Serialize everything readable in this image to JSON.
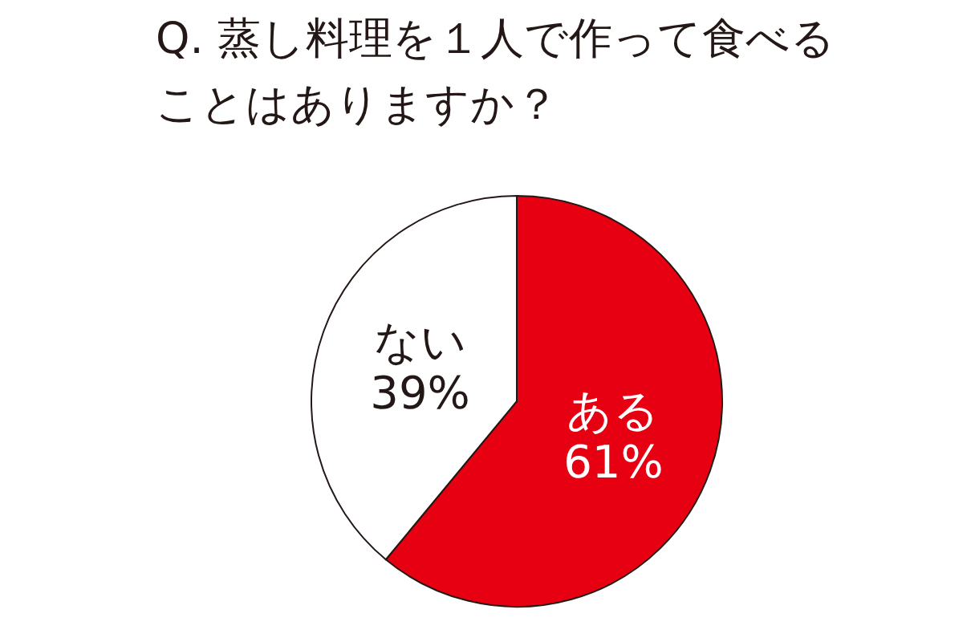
{
  "chart_data": {
    "type": "pie",
    "title": "Q. 蒸し料理を１人で作って食べることはありますか？",
    "categories": [
      "ある",
      "ない"
    ],
    "values": [
      61,
      39
    ],
    "colors": [
      "#e60012",
      "#ffffff"
    ],
    "value_labels": [
      "61%",
      "39%"
    ]
  }
}
